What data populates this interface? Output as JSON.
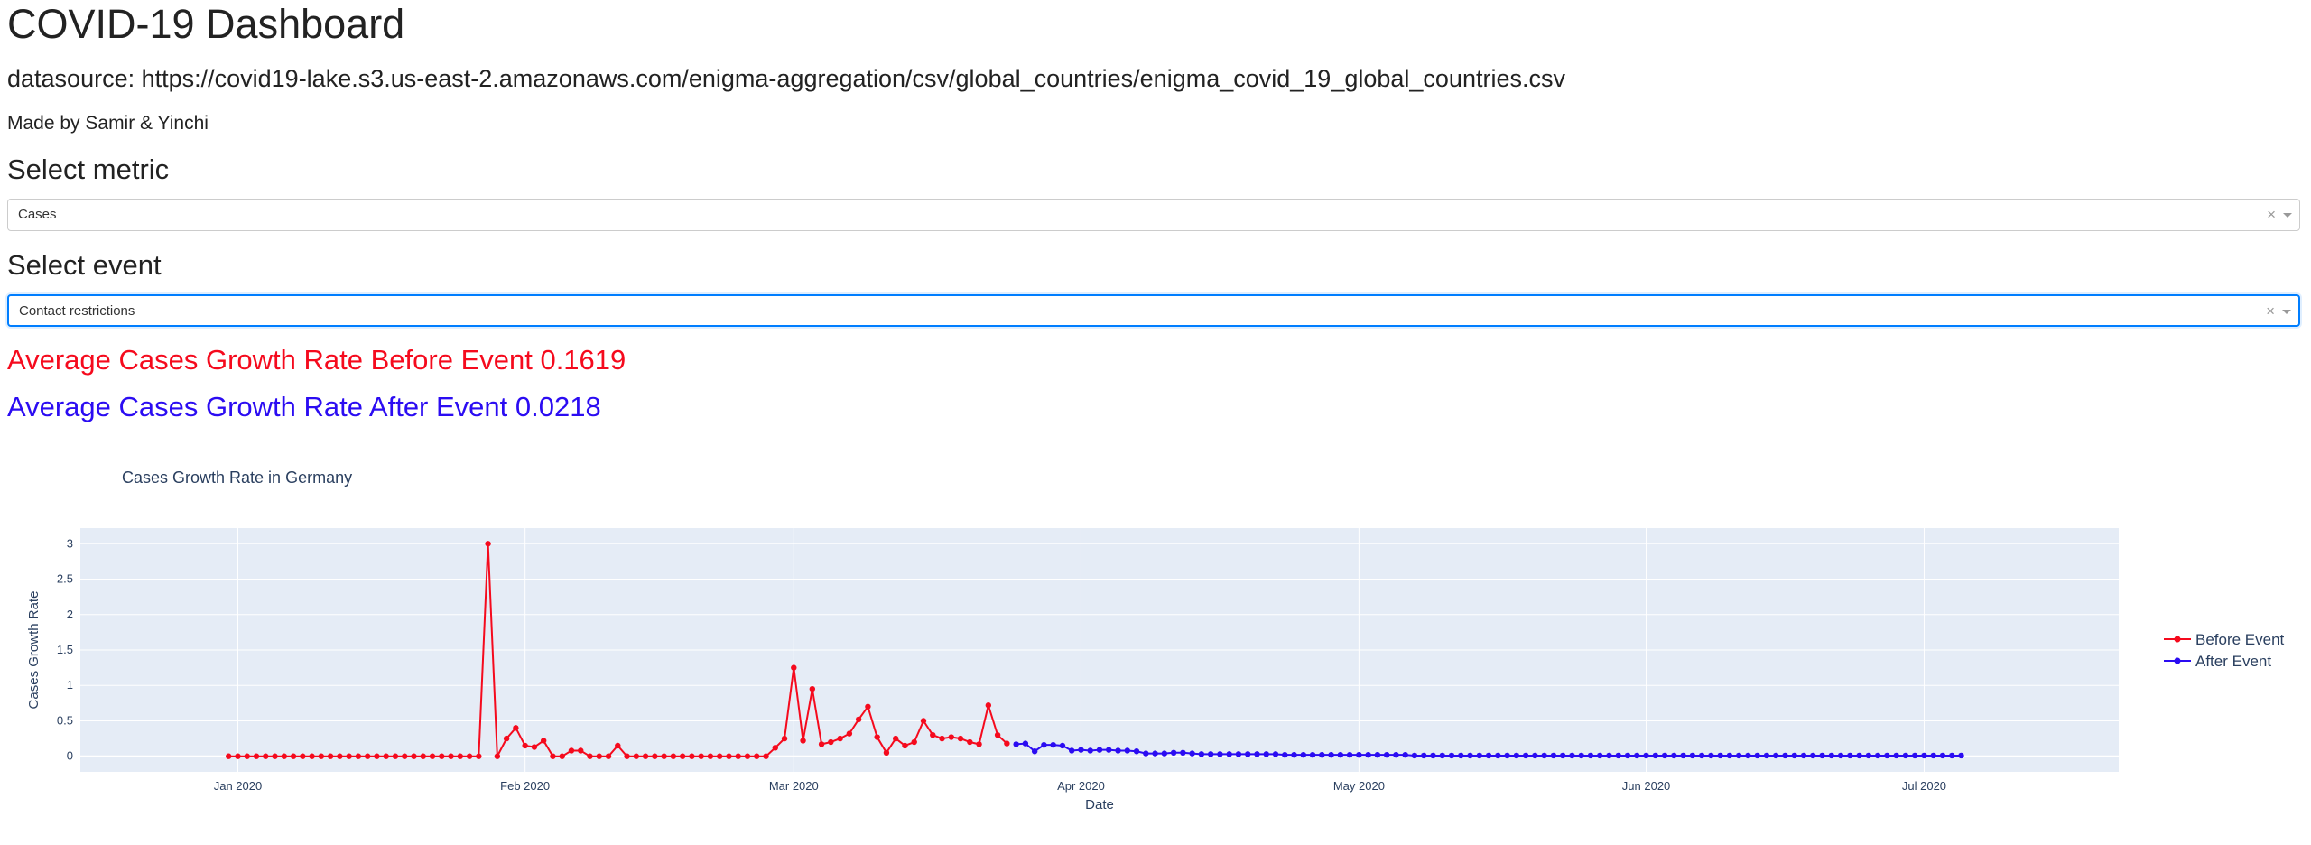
{
  "page": {
    "title": "COVID-19 Dashboard",
    "datasource": "datasource: https://covid19-lake.s3.us-east-2.amazonaws.com/enigma-aggregation/csv/global_countries/enigma_covid_19_global_countries.csv",
    "credit": "Made by Samir & Yinchi"
  },
  "metric": {
    "heading": "Select metric",
    "selected": "Cases",
    "clear_glyph": "×"
  },
  "event": {
    "heading": "Select event",
    "selected": "Contact restrictions",
    "clear_glyph": "×"
  },
  "averages": {
    "before_text": "Average Cases Growth Rate Before Event 0.1619",
    "after_text": "Average Cases Growth Rate After Event 0.0218",
    "before_color": "#f50a1d",
    "after_color": "#2b0cf2"
  },
  "chart_data": {
    "type": "line",
    "title": "Cases Growth Rate in Germany",
    "xlabel": "Date",
    "ylabel": "Cases Growth Rate",
    "x_start": "2019-12-31",
    "xlim": [
      "2019-12-15",
      "2020-07-22"
    ],
    "ylim": [
      -0.22,
      3.22
    ],
    "yticks": [
      0,
      0.5,
      1,
      1.5,
      2,
      2.5,
      3
    ],
    "ytick_labels": [
      "0",
      "0.5",
      "1",
      "1.5",
      "2",
      "2.5",
      "3"
    ],
    "xticks": [
      "2020-01-01",
      "2020-02-01",
      "2020-03-01",
      "2020-04-01",
      "2020-05-01",
      "2020-06-01",
      "2020-07-01"
    ],
    "xtick_labels": [
      "Jan 2020",
      "Feb 2020",
      "Mar 2020",
      "Apr 2020",
      "May 2020",
      "Jun 2020",
      "Jul 2020"
    ],
    "grid": true,
    "legend_position": "right",
    "plot_bgcolor": "#e5ecf6",
    "series": [
      {
        "name": "Before Event",
        "color": "#f50a1d",
        "values": [
          0,
          0,
          0,
          0,
          0,
          0,
          0,
          0,
          0,
          0,
          0,
          0,
          0,
          0,
          0,
          0,
          0,
          0,
          0,
          0,
          0,
          0,
          0,
          0,
          0,
          0,
          0,
          0,
          3,
          0,
          0.25,
          0.4,
          0.15,
          0.13,
          0.22,
          0,
          0,
          0.08,
          0.08,
          0,
          0,
          0,
          0.15,
          0,
          0,
          0,
          0,
          0,
          0,
          0,
          0,
          0,
          0,
          0,
          0,
          0,
          0,
          0,
          0,
          0.12,
          0.25,
          1.25,
          0.22,
          0.95,
          0.17,
          0.2,
          0.25,
          0.32,
          0.52,
          0.7,
          0.27,
          0.05,
          0.25,
          0.15,
          0.2,
          0.5,
          0.3,
          0.25,
          0.27,
          0.25,
          0.2,
          0.17,
          0.72,
          0.3,
          0.18
        ]
      },
      {
        "name": "After Event",
        "color": "#2b0cf2",
        "values": [
          0.17,
          0.18,
          0.07,
          0.16,
          0.16,
          0.15,
          0.08,
          0.09,
          0.08,
          0.09,
          0.09,
          0.08,
          0.08,
          0.07,
          0.04,
          0.04,
          0.04,
          0.05,
          0.05,
          0.04,
          0.03,
          0.03,
          0.03,
          0.03,
          0.03,
          0.03,
          0.03,
          0.03,
          0.03,
          0.02,
          0.02,
          0.02,
          0.02,
          0.02,
          0.02,
          0.02,
          0.02,
          0.02,
          0.02,
          0.02,
          0.02,
          0.02,
          0.02,
          0.01,
          0.01,
          0.01,
          0.01,
          0.01,
          0.01,
          0.01,
          0.01,
          0.01,
          0.01,
          0.01,
          0.01,
          0.01,
          0.01,
          0.01,
          0.01,
          0.01,
          0.01,
          0.01,
          0.01,
          0.01,
          0.01,
          0.01,
          0.01,
          0.01,
          0.01,
          0.01,
          0.01,
          0.01,
          0.01,
          0.01,
          0.01,
          0.01,
          0.01,
          0.01,
          0.01,
          0.01,
          0.01,
          0.01,
          0.01,
          0.01,
          0.01,
          0.01,
          0.01,
          0.01,
          0.01,
          0.01,
          0.01,
          0.01,
          0.01,
          0.01,
          0.01,
          0.01,
          0.01,
          0.01,
          0.01,
          0.01,
          0.01,
          0.01,
          0.01
        ]
      }
    ]
  }
}
